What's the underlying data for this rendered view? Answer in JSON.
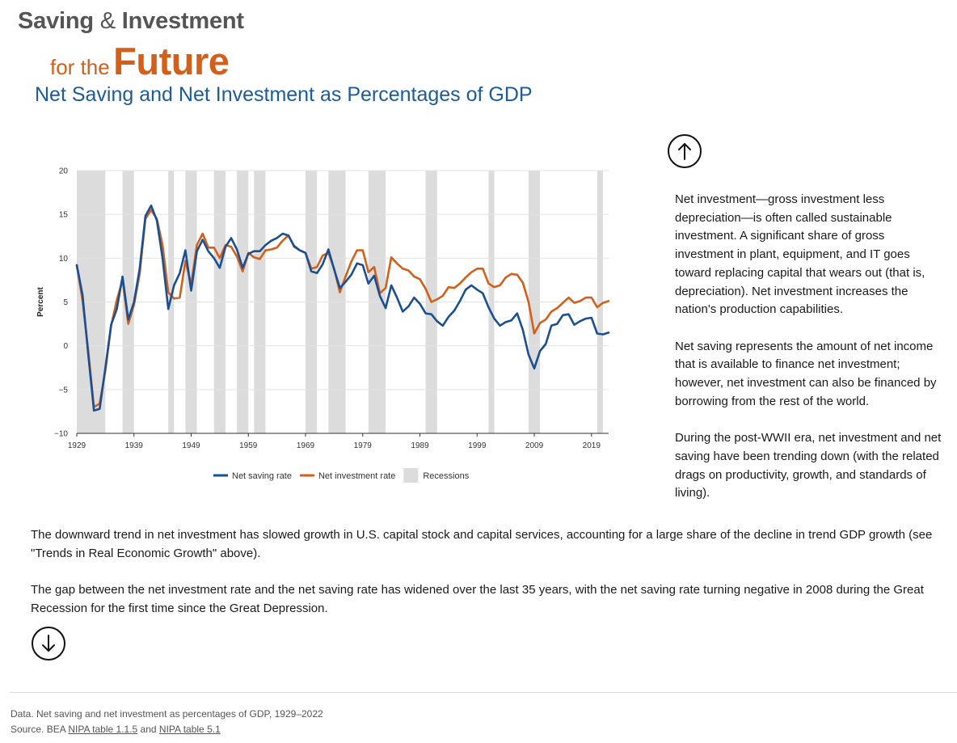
{
  "header": {
    "brand_part1": "Saving",
    "brand_amp": "&",
    "brand_part2": "Investment",
    "brand_for": "for the",
    "brand_future": "Future",
    "subtitle": "Net Saving and Net Investment as Percentages of GDP"
  },
  "nav": {
    "up_icon": "arrow-up-circle-icon",
    "down_icon": "arrow-down-circle-icon"
  },
  "side_paragraphs": [
    "Net investment—gross investment less depreciation—is often called sustainable investment. A significant share of gross investment in plant, equipment, and IT goes toward replacing capital that wears out (that is, depreciation). Net investment increases the nation's production capabilities.",
    "Net saving represents the amount of net income that is available to finance net investment; however, net investment can also be financed by borrowing from the rest of the world.",
    "During the post-WWII era, net investment and net saving have been trending down (with the related drags on productivity, growth, and standards of living)."
  ],
  "body_paragraphs": [
    "The downward trend in net investment has slowed growth in U.S. capital stock and capital services, accounting for a large share of the decline in trend GDP growth (see \"Trends in Real Economic Growth\" above).",
    "The gap between the net investment rate and the net saving rate has widened over the last 35 years, with the net saving rate turning negative in 2008 during the Great Recession for the first time since the Great Depression."
  ],
  "footer": {
    "line1": "Data. Net saving and net investment as percentages of GDP, 1929–2022",
    "source_prefix": "Source. BEA ",
    "link1": "NIPA table 1.1.5",
    "and_text": " and ",
    "link2": "NIPA table 5.1"
  },
  "chart_data": {
    "type": "line",
    "xlabel": "",
    "ylabel": "Percent",
    "xlim": [
      1929,
      2022
    ],
    "ylim": [
      -10,
      20
    ],
    "yticks": [
      20,
      15,
      10,
      5,
      0,
      -5,
      -10
    ],
    "ytick_labels": [
      "20",
      "15",
      "10",
      "5",
      "0",
      "−5",
      "−10"
    ],
    "xticks": [
      1929,
      1939,
      1949,
      1959,
      1969,
      1979,
      1989,
      1999,
      2009,
      2019
    ],
    "grid": true,
    "legend_position": "bottom",
    "colors": {
      "saving": "#1a4f91",
      "investment": "#d2601a",
      "recession": "#dcdcdd",
      "grid": "#e2e2e2",
      "axis": "#333333"
    },
    "recessions": [
      [
        1929,
        1934
      ],
      [
        1937,
        1939
      ],
      [
        1945,
        1946
      ],
      [
        1948,
        1950
      ],
      [
        1953,
        1955
      ],
      [
        1957,
        1959
      ],
      [
        1960,
        1962
      ],
      [
        1969,
        1971
      ],
      [
        1973,
        1976
      ],
      [
        1980,
        1983
      ],
      [
        1990,
        1992
      ],
      [
        2001,
        2002
      ],
      [
        2008,
        2010
      ],
      [
        2020,
        2021
      ]
    ],
    "x": [
      1929,
      1930,
      1931,
      1932,
      1933,
      1934,
      1935,
      1936,
      1937,
      1938,
      1939,
      1940,
      1941,
      1942,
      1943,
      1944,
      1945,
      1946,
      1947,
      1948,
      1949,
      1950,
      1951,
      1952,
      1953,
      1954,
      1955,
      1956,
      1957,
      1958,
      1959,
      1960,
      1961,
      1962,
      1963,
      1964,
      1965,
      1966,
      1967,
      1968,
      1969,
      1970,
      1971,
      1972,
      1973,
      1974,
      1975,
      1976,
      1977,
      1978,
      1979,
      1980,
      1981,
      1982,
      1983,
      1984,
      1985,
      1986,
      1987,
      1988,
      1989,
      1990,
      1991,
      1992,
      1993,
      1994,
      1995,
      1996,
      1997,
      1998,
      1999,
      2000,
      2001,
      2002,
      2003,
      2004,
      2005,
      2006,
      2007,
      2008,
      2009,
      2010,
      2011,
      2012,
      2013,
      2014,
      2015,
      2016,
      2017,
      2018,
      2019,
      2020,
      2021,
      2022
    ],
    "series": [
      {
        "name": "Net saving rate",
        "values": [
          9.2,
          5.8,
          -1.0,
          -7.4,
          -7.2,
          -2.5,
          2.4,
          4.2,
          7.9,
          3.0,
          5.0,
          8.8,
          14.8,
          16.0,
          14.3,
          10.0,
          4.2,
          6.9,
          8.3,
          10.9,
          6.3,
          10.8,
          12.1,
          10.8,
          10.0,
          8.9,
          11.3,
          12.3,
          11.0,
          8.9,
          10.5,
          10.8,
          10.8,
          11.5,
          12.0,
          12.3,
          12.8,
          12.6,
          11.4,
          10.9,
          10.6,
          8.5,
          8.3,
          9.3,
          11.0,
          8.7,
          6.6,
          7.3,
          8.1,
          9.4,
          9.2,
          7.1,
          8.0,
          5.7,
          4.3,
          6.9,
          5.5,
          3.9,
          4.5,
          5.5,
          4.8,
          3.7,
          3.6,
          2.8,
          2.3,
          3.3,
          4.0,
          5.1,
          6.4,
          6.9,
          6.4,
          6.0,
          4.4,
          3.1,
          2.3,
          2.7,
          2.9,
          3.7,
          1.8,
          -1.0,
          -2.6,
          -0.6,
          0.2,
          2.3,
          2.5,
          3.5,
          3.6,
          2.4,
          2.8,
          3.1,
          3.2,
          1.4,
          1.3,
          1.5
        ]
      },
      {
        "name": "Net investment rate",
        "values": [
          9.2,
          5.2,
          -0.6,
          -7.0,
          -6.6,
          -2.8,
          2.3,
          5.2,
          7.5,
          2.5,
          4.7,
          8.2,
          14.5,
          15.5,
          14.5,
          11.5,
          6.1,
          5.4,
          5.5,
          9.7,
          7.0,
          11.5,
          12.8,
          11.2,
          11.2,
          10.0,
          11.5,
          11.3,
          10.2,
          8.5,
          10.6,
          10.1,
          9.9,
          10.9,
          11.0,
          11.2,
          12.0,
          12.6,
          11.3,
          10.9,
          10.6,
          8.8,
          9.0,
          10.3,
          10.6,
          8.8,
          6.1,
          7.9,
          9.6,
          10.9,
          10.9,
          8.4,
          9.0,
          6.0,
          6.6,
          10.1,
          9.4,
          8.8,
          8.6,
          7.9,
          7.6,
          6.5,
          5.0,
          5.3,
          5.7,
          6.7,
          6.6,
          7.1,
          7.8,
          8.4,
          8.8,
          8.8,
          7.1,
          6.7,
          6.9,
          7.8,
          8.2,
          8.1,
          7.2,
          5.0,
          1.4,
          2.6,
          3.0,
          3.9,
          4.3,
          4.9,
          5.5,
          4.9,
          5.1,
          5.5,
          5.5,
          4.4,
          4.9,
          5.1
        ]
      },
      {
        "name": "Recessions"
      }
    ]
  }
}
